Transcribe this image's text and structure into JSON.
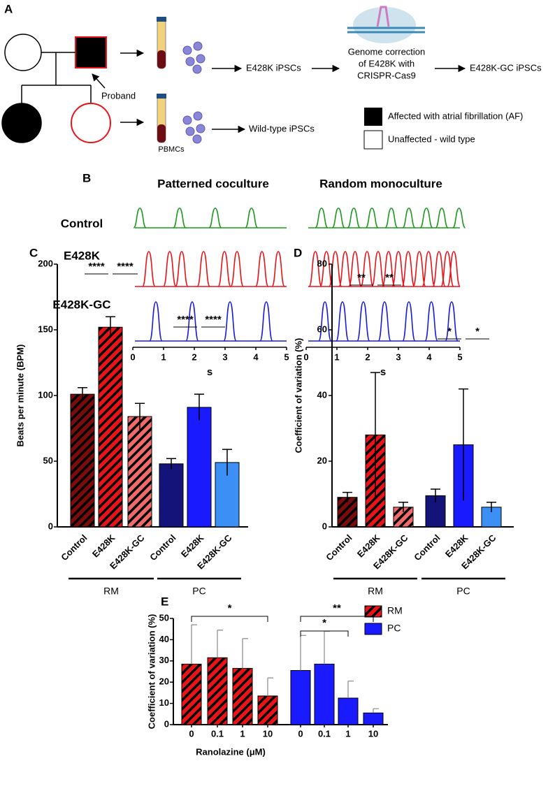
{
  "panel_a": {
    "label": "A",
    "proband_label": "Proband",
    "sample_label": "PBMCs",
    "steps": [
      "E428K iPSCs",
      "Genome correction",
      "of E428K with",
      "CRISPR-Cas9",
      "E428K-GC iPSCs",
      "Wild-type iPSCs"
    ],
    "legend": [
      "Affected with atrial fibrillation (AF)",
      "Unaffected - wild type"
    ]
  },
  "chart_data": [
    {
      "type": "trace",
      "label": "B",
      "rows": [
        "Control",
        "E428K",
        "E428K-GC"
      ],
      "colors": [
        "#1f9a1f",
        "#e8141a",
        "#1a1ae0"
      ],
      "xlim": [
        0,
        5
      ],
      "xticks": [
        0,
        1,
        2,
        3,
        4,
        5
      ],
      "xlabel": "s",
      "panels": [
        {
          "title": "Patterned coculture",
          "series": [
            {
              "x": [
                0.23,
                1.52,
                2.68,
                3.86
              ]
            },
            {
              "x": [
                0.52,
                1.2,
                1.59,
                2.3,
                2.98,
                3.39,
                4.2,
                4.73
              ]
            },
            {
              "x": [
                0.75,
                1.93,
                3.16,
                4.34
              ]
            }
          ]
        },
        {
          "title": "Random monoculture",
          "series": [
            {
              "x": [
                0.5,
                1.05,
                1.55,
                2.14,
                2.77,
                3.34,
                3.91,
                4.41,
                4.97
              ]
            },
            {
              "x": [
                0.3,
                0.66,
                0.95,
                1.27,
                1.59,
                1.98,
                2.34,
                2.68,
                3.0,
                3.32,
                3.68,
                3.98,
                4.32,
                4.59,
                4.8
              ]
            },
            {
              "x": [
                0.61,
                1.18,
                1.86,
                2.55,
                3.34,
                4.07,
                4.73
              ]
            }
          ]
        }
      ]
    },
    {
      "type": "bar",
      "label": "C",
      "ylabel": "Beats per minute (BPM)",
      "categories": [
        "Control",
        "E428K",
        "E428K-GC",
        "Control",
        "E428K",
        "E428K-GC"
      ],
      "values": [
        101,
        152,
        84,
        48,
        91,
        49
      ],
      "errors": [
        5,
        8,
        10,
        4,
        10,
        10
      ],
      "colors": [
        "#7a0c0c",
        "#e8141a",
        "#f06a6a",
        "#14137a",
        "#1a1aff",
        "#3b8ff5"
      ],
      "hatch": [
        true,
        true,
        true,
        false,
        false,
        false
      ],
      "groups": [
        {
          "name": "RM",
          "from": 0,
          "to": 2
        },
        {
          "name": "PC",
          "from": 3,
          "to": 5
        }
      ],
      "ylim": [
        0,
        200
      ],
      "yticks": [
        0,
        50,
        100,
        150,
        200
      ],
      "annotations": [
        {
          "text": "****",
          "from": 0,
          "to": 1
        },
        {
          "text": "****",
          "from": 1,
          "to": 2
        },
        {
          "text": "****",
          "from": 3,
          "to": 4
        },
        {
          "text": "****",
          "from": 4,
          "to": 5
        }
      ]
    },
    {
      "type": "bar",
      "label": "D",
      "ylabel": "Coefficient of variation (%)",
      "categories": [
        "Control",
        "E428K",
        "E428K-GC",
        "Control",
        "E428K",
        "E428K-GC"
      ],
      "values": [
        9,
        28,
        6,
        9.5,
        25,
        6
      ],
      "errors": [
        1.5,
        19,
        1.5,
        2,
        17,
        1.5
      ],
      "colors": [
        "#7a0c0c",
        "#e8141a",
        "#f06a6a",
        "#14137a",
        "#1a1aff",
        "#3b8ff5"
      ],
      "hatch": [
        true,
        true,
        true,
        false,
        false,
        false
      ],
      "groups": [
        {
          "name": "RM",
          "from": 0,
          "to": 2
        },
        {
          "name": "PC",
          "from": 3,
          "to": 5
        }
      ],
      "ylim": [
        0,
        80
      ],
      "yticks": [
        0,
        20,
        40,
        60,
        80
      ],
      "annotations": [
        {
          "text": "**",
          "from": 0,
          "to": 1
        },
        {
          "text": "**",
          "from": 1,
          "to": 2
        },
        {
          "text": "*",
          "from": 3,
          "to": 4
        },
        {
          "text": "*",
          "from": 4,
          "to": 5
        }
      ]
    },
    {
      "type": "grouped_bar",
      "label": "E",
      "ylabel": "Coefficient of variation (%)",
      "xlabel": "Ranolazine (μM)",
      "categories": [
        "0",
        "0.1",
        "1",
        "10"
      ],
      "series": [
        {
          "name": "RM",
          "color": "#e8141a",
          "hatch": true,
          "values": [
            28.5,
            31.5,
            26.5,
            13.5
          ],
          "errors": [
            18.5,
            13,
            14,
            8.5
          ]
        },
        {
          "name": "PC",
          "color": "#1a1aff",
          "hatch": false,
          "values": [
            25.5,
            28.5,
            12.5,
            5.5
          ],
          "errors": [
            16.5,
            15.5,
            8,
            2
          ]
        }
      ],
      "ylim": [
        0,
        50
      ],
      "yticks": [
        0,
        10,
        20,
        30,
        40,
        50
      ],
      "annotations": [
        {
          "text": "*",
          "series": 0,
          "from": 0,
          "to": 3
        },
        {
          "text": "**",
          "series": 1,
          "from": 0,
          "to": 3
        },
        {
          "text": "*",
          "series": 1,
          "from": 0,
          "to": 2
        }
      ]
    }
  ]
}
